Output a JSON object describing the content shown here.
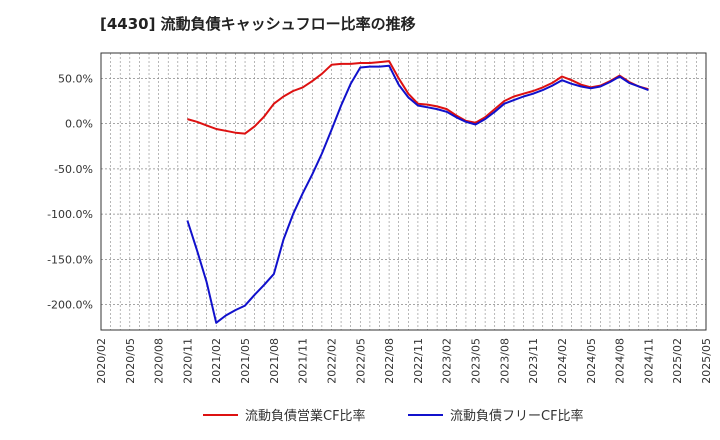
{
  "chart_data": {
    "type": "line",
    "title": "[4430]  流動負債キャッシュフロー比率の推移",
    "xlabel": "",
    "ylabel": "",
    "ylim": [
      -228,
      78
    ],
    "yticks": [
      50,
      0,
      -50,
      -100,
      -150,
      -200
    ],
    "ytick_labels": [
      "50.0%",
      "0.0%",
      "-50.0%",
      "-100.0%",
      "-150.0%",
      "-200.0%"
    ],
    "x_start": "2020/02",
    "x_end": "2025/05",
    "xtick_labels": [
      "2020/02",
      "2020/05",
      "2020/08",
      "2020/11",
      "2021/02",
      "2021/05",
      "2021/08",
      "2021/11",
      "2022/02",
      "2022/05",
      "2022/08",
      "2022/11",
      "2023/02",
      "2023/05",
      "2023/08",
      "2023/11",
      "2024/02",
      "2024/05",
      "2024/08",
      "2024/11",
      "2025/02",
      "2025/05"
    ],
    "grid": true,
    "legend_position": "bottom",
    "series": [
      {
        "name": "流動負債営業CF比率",
        "color": "#dd1111",
        "x": [
          "2020/11",
          "2020/12",
          "2021/01",
          "2021/02",
          "2021/03",
          "2021/04",
          "2021/05",
          "2021/06",
          "2021/07",
          "2021/08",
          "2021/09",
          "2021/10",
          "2021/11",
          "2021/12",
          "2022/01",
          "2022/02",
          "2022/03",
          "2022/04",
          "2022/05",
          "2022/06",
          "2022/07",
          "2022/08",
          "2022/09",
          "2022/10",
          "2022/11",
          "2022/12",
          "2023/01",
          "2023/02",
          "2023/03",
          "2023/04",
          "2023/05",
          "2023/06",
          "2023/07",
          "2023/08",
          "2023/09",
          "2023/10",
          "2023/11",
          "2023/12",
          "2024/01",
          "2024/02",
          "2024/03",
          "2024/04",
          "2024/05",
          "2024/06",
          "2024/07",
          "2024/08",
          "2024/09",
          "2024/10",
          "2024/11"
        ],
        "values": [
          5,
          2,
          -2,
          -6,
          -8,
          -10,
          -11,
          -3,
          8,
          22,
          30,
          36,
          40,
          47,
          55,
          65,
          66,
          66,
          67,
          67,
          68,
          69,
          50,
          33,
          22,
          21,
          19,
          16,
          9,
          3,
          1,
          7,
          16,
          25,
          30,
          33,
          36,
          40,
          45,
          52,
          48,
          43,
          40,
          42,
          47,
          53,
          46,
          41,
          38
        ]
      },
      {
        "name": "流動負債フリーCF比率",
        "color": "#1111cc",
        "x": [
          "2020/11",
          "2020/12",
          "2021/01",
          "2021/02",
          "2021/03",
          "2021/04",
          "2021/05",
          "2021/06",
          "2021/07",
          "2021/08",
          "2021/09",
          "2021/10",
          "2021/11",
          "2021/12",
          "2022/01",
          "2022/02",
          "2022/03",
          "2022/04",
          "2022/05",
          "2022/06",
          "2022/07",
          "2022/08",
          "2022/09",
          "2022/10",
          "2022/11",
          "2022/12",
          "2023/01",
          "2023/02",
          "2023/03",
          "2023/04",
          "2023/05",
          "2023/06",
          "2023/07",
          "2023/08",
          "2023/09",
          "2023/10",
          "2023/11",
          "2023/12",
          "2024/01",
          "2024/02",
          "2024/03",
          "2024/04",
          "2024/05",
          "2024/06",
          "2024/07",
          "2024/08",
          "2024/09",
          "2024/10",
          "2024/11"
        ],
        "values": [
          -107,
          -140,
          -175,
          -220,
          -212,
          -206,
          -201,
          -189,
          -178,
          -166,
          -128,
          -100,
          -77,
          -56,
          -33,
          -7,
          20,
          44,
          62,
          63,
          63,
          64,
          43,
          29,
          20,
          18,
          16,
          13,
          7,
          2,
          -1,
          5,
          13,
          22,
          26,
          30,
          33,
          37,
          42,
          48,
          44,
          41,
          39,
          41,
          46,
          52,
          45,
          41,
          37
        ]
      }
    ]
  }
}
